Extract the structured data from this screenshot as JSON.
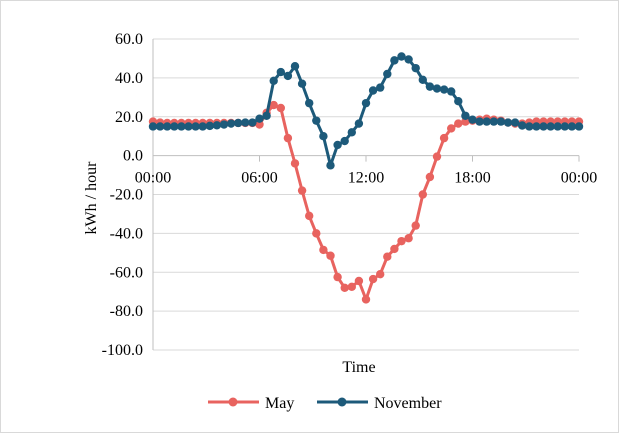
{
  "chart_data": {
    "type": "line",
    "title": "",
    "xlabel": "Time",
    "ylabel": "kWh / hour",
    "ylim": [
      -100,
      60
    ],
    "y_ticks": [
      60,
      40,
      20,
      0,
      -20,
      -40,
      -60,
      -80,
      -100
    ],
    "y_tick_labels": [
      "60.0",
      "40.0",
      "20.0",
      "0.0",
      "-20.0",
      "-40.0",
      "-60.0",
      "-80.0",
      "-100.0"
    ],
    "x_range_hours": [
      0,
      24
    ],
    "x_tick_hours": [
      0,
      6,
      12,
      18,
      24
    ],
    "x_tick_labels": [
      "00:00",
      "06:00",
      "12:00",
      "18:00",
      "00:00"
    ],
    "x_tick_label_position": "at y = 0",
    "grid": "horizontal",
    "legend_position": "bottom",
    "x_hours": [
      0.0,
      0.4,
      0.8,
      1.2,
      1.6,
      2.0,
      2.4,
      2.8,
      3.2,
      3.6,
      4.0,
      4.4,
      4.8,
      5.2,
      5.6,
      6.0,
      6.4,
      6.8,
      7.2,
      7.6,
      8.0,
      8.4,
      8.8,
      9.2,
      9.6,
      10.0,
      10.4,
      10.8,
      11.2,
      11.6,
      12.0,
      12.4,
      12.8,
      13.2,
      13.6,
      14.0,
      14.4,
      14.8,
      15.2,
      15.6,
      16.0,
      16.4,
      16.8,
      17.2,
      17.6,
      18.0,
      18.4,
      18.8,
      19.2,
      19.6,
      20.0,
      20.4,
      20.8,
      21.2,
      21.6,
      22.0,
      22.4,
      22.8,
      23.2,
      23.6,
      24.0
    ],
    "series": [
      {
        "name": "May",
        "color": "#e8635f",
        "values": [
          17.5,
          17.0,
          16.8,
          16.8,
          16.8,
          16.8,
          16.8,
          16.8,
          16.8,
          16.8,
          16.8,
          16.8,
          16.8,
          16.8,
          16.8,
          16.0,
          22.0,
          26.0,
          24.5,
          9.0,
          -4.0,
          -18.0,
          -31.0,
          -40.0,
          -48.5,
          -51.5,
          -62.5,
          -68.0,
          -67.5,
          -64.5,
          -74.0,
          -63.5,
          -61.0,
          -52.0,
          -48.0,
          -44.0,
          -42.5,
          -36.0,
          -20.0,
          -11.0,
          -0.5,
          9.0,
          14.0,
          16.5,
          17.5,
          18.0,
          18.5,
          19.0,
          18.5,
          18.0,
          17.0,
          16.5,
          16.5,
          17.0,
          17.5,
          17.5,
          17.5,
          17.5,
          17.5,
          17.5,
          17.5
        ]
      },
      {
        "name": "November",
        "color": "#1d5a7a",
        "values": [
          15.0,
          15.0,
          15.0,
          15.0,
          15.0,
          15.0,
          15.0,
          15.0,
          15.3,
          15.6,
          16.0,
          16.5,
          16.8,
          17.0,
          17.0,
          19.0,
          20.5,
          38.5,
          43.0,
          41.0,
          46.0,
          37.0,
          27.0,
          18.0,
          10.0,
          -5.0,
          5.5,
          7.5,
          12.0,
          16.5,
          27.0,
          33.5,
          35.0,
          42.0,
          49.0,
          51.0,
          49.5,
          45.0,
          39.0,
          35.5,
          34.5,
          34.0,
          33.0,
          28.0,
          20.5,
          18.5,
          17.5,
          17.5,
          17.5,
          17.5,
          17.0,
          17.0,
          15.5,
          15.0,
          15.0,
          15.0,
          15.0,
          15.0,
          15.0,
          15.0,
          15.0
        ]
      }
    ]
  }
}
